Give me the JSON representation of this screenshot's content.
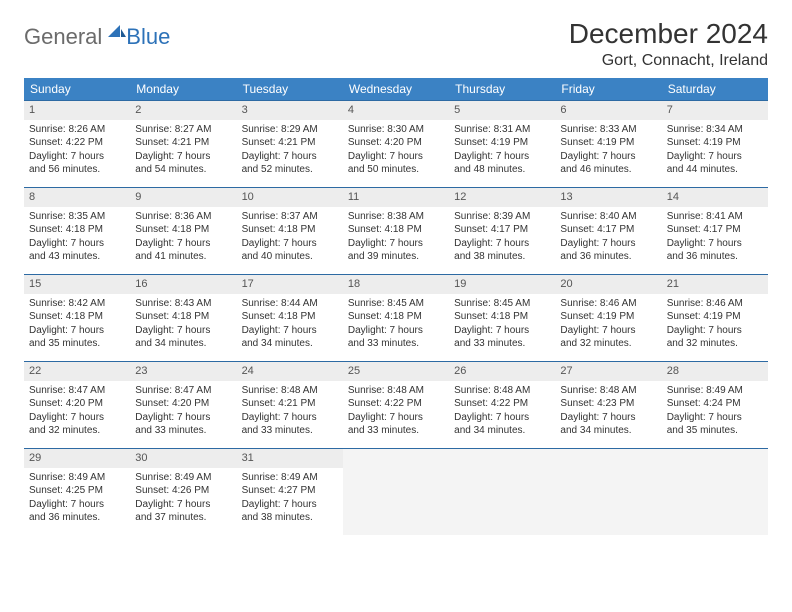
{
  "logo": {
    "general": "General",
    "blue": "Blue"
  },
  "title": "December 2024",
  "location": "Gort, Connacht, Ireland",
  "colors": {
    "header_bg": "#3b82c4",
    "header_text": "#ffffff",
    "row_border": "#2d6aa3",
    "daynum_bg": "#ededed",
    "empty_bg": "#f4f4f4",
    "body_text": "#333333"
  },
  "weekdays": [
    "Sunday",
    "Monday",
    "Tuesday",
    "Wednesday",
    "Thursday",
    "Friday",
    "Saturday"
  ],
  "weeks": [
    [
      {
        "n": "1",
        "sr": "Sunrise: 8:26 AM",
        "ss": "Sunset: 4:22 PM",
        "d1": "Daylight: 7 hours",
        "d2": "and 56 minutes."
      },
      {
        "n": "2",
        "sr": "Sunrise: 8:27 AM",
        "ss": "Sunset: 4:21 PM",
        "d1": "Daylight: 7 hours",
        "d2": "and 54 minutes."
      },
      {
        "n": "3",
        "sr": "Sunrise: 8:29 AM",
        "ss": "Sunset: 4:21 PM",
        "d1": "Daylight: 7 hours",
        "d2": "and 52 minutes."
      },
      {
        "n": "4",
        "sr": "Sunrise: 8:30 AM",
        "ss": "Sunset: 4:20 PM",
        "d1": "Daylight: 7 hours",
        "d2": "and 50 minutes."
      },
      {
        "n": "5",
        "sr": "Sunrise: 8:31 AM",
        "ss": "Sunset: 4:19 PM",
        "d1": "Daylight: 7 hours",
        "d2": "and 48 minutes."
      },
      {
        "n": "6",
        "sr": "Sunrise: 8:33 AM",
        "ss": "Sunset: 4:19 PM",
        "d1": "Daylight: 7 hours",
        "d2": "and 46 minutes."
      },
      {
        "n": "7",
        "sr": "Sunrise: 8:34 AM",
        "ss": "Sunset: 4:19 PM",
        "d1": "Daylight: 7 hours",
        "d2": "and 44 minutes."
      }
    ],
    [
      {
        "n": "8",
        "sr": "Sunrise: 8:35 AM",
        "ss": "Sunset: 4:18 PM",
        "d1": "Daylight: 7 hours",
        "d2": "and 43 minutes."
      },
      {
        "n": "9",
        "sr": "Sunrise: 8:36 AM",
        "ss": "Sunset: 4:18 PM",
        "d1": "Daylight: 7 hours",
        "d2": "and 41 minutes."
      },
      {
        "n": "10",
        "sr": "Sunrise: 8:37 AM",
        "ss": "Sunset: 4:18 PM",
        "d1": "Daylight: 7 hours",
        "d2": "and 40 minutes."
      },
      {
        "n": "11",
        "sr": "Sunrise: 8:38 AM",
        "ss": "Sunset: 4:18 PM",
        "d1": "Daylight: 7 hours",
        "d2": "and 39 minutes."
      },
      {
        "n": "12",
        "sr": "Sunrise: 8:39 AM",
        "ss": "Sunset: 4:17 PM",
        "d1": "Daylight: 7 hours",
        "d2": "and 38 minutes."
      },
      {
        "n": "13",
        "sr": "Sunrise: 8:40 AM",
        "ss": "Sunset: 4:17 PM",
        "d1": "Daylight: 7 hours",
        "d2": "and 36 minutes."
      },
      {
        "n": "14",
        "sr": "Sunrise: 8:41 AM",
        "ss": "Sunset: 4:17 PM",
        "d1": "Daylight: 7 hours",
        "d2": "and 36 minutes."
      }
    ],
    [
      {
        "n": "15",
        "sr": "Sunrise: 8:42 AM",
        "ss": "Sunset: 4:18 PM",
        "d1": "Daylight: 7 hours",
        "d2": "and 35 minutes."
      },
      {
        "n": "16",
        "sr": "Sunrise: 8:43 AM",
        "ss": "Sunset: 4:18 PM",
        "d1": "Daylight: 7 hours",
        "d2": "and 34 minutes."
      },
      {
        "n": "17",
        "sr": "Sunrise: 8:44 AM",
        "ss": "Sunset: 4:18 PM",
        "d1": "Daylight: 7 hours",
        "d2": "and 34 minutes."
      },
      {
        "n": "18",
        "sr": "Sunrise: 8:45 AM",
        "ss": "Sunset: 4:18 PM",
        "d1": "Daylight: 7 hours",
        "d2": "and 33 minutes."
      },
      {
        "n": "19",
        "sr": "Sunrise: 8:45 AM",
        "ss": "Sunset: 4:18 PM",
        "d1": "Daylight: 7 hours",
        "d2": "and 33 minutes."
      },
      {
        "n": "20",
        "sr": "Sunrise: 8:46 AM",
        "ss": "Sunset: 4:19 PM",
        "d1": "Daylight: 7 hours",
        "d2": "and 32 minutes."
      },
      {
        "n": "21",
        "sr": "Sunrise: 8:46 AM",
        "ss": "Sunset: 4:19 PM",
        "d1": "Daylight: 7 hours",
        "d2": "and 32 minutes."
      }
    ],
    [
      {
        "n": "22",
        "sr": "Sunrise: 8:47 AM",
        "ss": "Sunset: 4:20 PM",
        "d1": "Daylight: 7 hours",
        "d2": "and 32 minutes."
      },
      {
        "n": "23",
        "sr": "Sunrise: 8:47 AM",
        "ss": "Sunset: 4:20 PM",
        "d1": "Daylight: 7 hours",
        "d2": "and 33 minutes."
      },
      {
        "n": "24",
        "sr": "Sunrise: 8:48 AM",
        "ss": "Sunset: 4:21 PM",
        "d1": "Daylight: 7 hours",
        "d2": "and 33 minutes."
      },
      {
        "n": "25",
        "sr": "Sunrise: 8:48 AM",
        "ss": "Sunset: 4:22 PM",
        "d1": "Daylight: 7 hours",
        "d2": "and 33 minutes."
      },
      {
        "n": "26",
        "sr": "Sunrise: 8:48 AM",
        "ss": "Sunset: 4:22 PM",
        "d1": "Daylight: 7 hours",
        "d2": "and 34 minutes."
      },
      {
        "n": "27",
        "sr": "Sunrise: 8:48 AM",
        "ss": "Sunset: 4:23 PM",
        "d1": "Daylight: 7 hours",
        "d2": "and 34 minutes."
      },
      {
        "n": "28",
        "sr": "Sunrise: 8:49 AM",
        "ss": "Sunset: 4:24 PM",
        "d1": "Daylight: 7 hours",
        "d2": "and 35 minutes."
      }
    ],
    [
      {
        "n": "29",
        "sr": "Sunrise: 8:49 AM",
        "ss": "Sunset: 4:25 PM",
        "d1": "Daylight: 7 hours",
        "d2": "and 36 minutes."
      },
      {
        "n": "30",
        "sr": "Sunrise: 8:49 AM",
        "ss": "Sunset: 4:26 PM",
        "d1": "Daylight: 7 hours",
        "d2": "and 37 minutes."
      },
      {
        "n": "31",
        "sr": "Sunrise: 8:49 AM",
        "ss": "Sunset: 4:27 PM",
        "d1": "Daylight: 7 hours",
        "d2": "and 38 minutes."
      },
      null,
      null,
      null,
      null
    ]
  ]
}
